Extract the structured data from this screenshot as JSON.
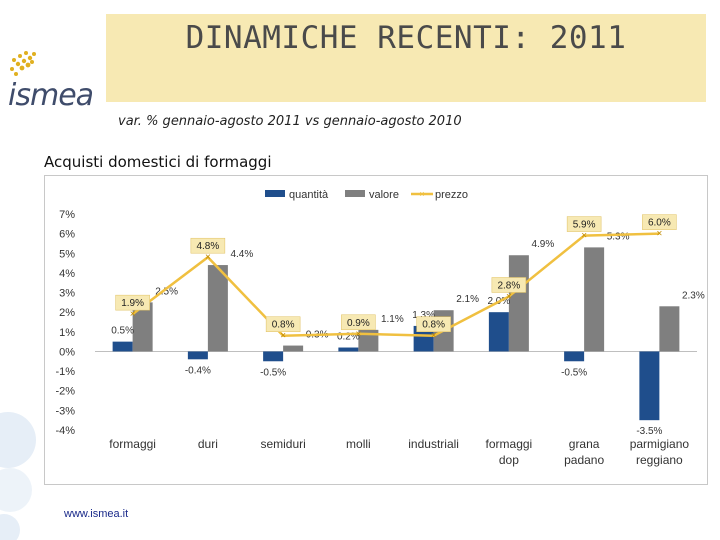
{
  "header": {
    "title": "DINAMICHE RECENTI: 2011",
    "subtitle": "var. % gennaio-agosto 2011 vs  gennaio-agosto 2010",
    "logo_text": "ismea",
    "website": "www.ismea.it"
  },
  "colors": {
    "quantita": "#1f4e8c",
    "valore": "#7f7f7f",
    "prezzo": "#f0c040",
    "title_bg": "#f7e9b3"
  },
  "chart_data": {
    "type": "bar",
    "title": "Acquisti domestici di formaggi",
    "categories": [
      "formaggi",
      "duri",
      "semiduri",
      "molli",
      "industriali",
      "formaggi\ndop",
      "grana\npadano",
      "parmigiano\nreggiano"
    ],
    "series": [
      {
        "name": "quantità",
        "kind": "bar",
        "values": [
          0.5,
          -0.4,
          -0.5,
          0.2,
          1.3,
          2.0,
          -0.5,
          -3.5
        ],
        "labels": [
          "0.5%",
          "-0.4%",
          "-0.5%",
          "0.2%",
          "1.3%",
          "2.0%",
          "-0.5%",
          "-3.5%"
        ]
      },
      {
        "name": "valore",
        "kind": "bar",
        "values": [
          2.5,
          4.4,
          0.3,
          1.1,
          2.1,
          4.9,
          5.3,
          2.3
        ],
        "labels": [
          "2.5%",
          "4.4%",
          "0.3%",
          "1.1%",
          "2.1%",
          "4.9%",
          "5.3%",
          "2.3%"
        ]
      },
      {
        "name": "prezzo",
        "kind": "line",
        "values": [
          1.9,
          4.8,
          0.8,
          0.9,
          0.8,
          2.8,
          5.9,
          6.0
        ],
        "labels": [
          "1.9%",
          "4.8%",
          "0.8%",
          "0.9%",
          "0.8%",
          "2.8%",
          "5.9%",
          "6.0%"
        ]
      }
    ],
    "legend": [
      "quantità",
      "valore",
      "prezzo"
    ],
    "legend_position": "top",
    "ylim": [
      -4,
      7
    ],
    "yticks": [
      7,
      6,
      5,
      4,
      3,
      2,
      1,
      0,
      -1,
      -2,
      -3,
      -4
    ],
    "ytick_labels": [
      "7%",
      "6%",
      "5%",
      "4%",
      "3%",
      "2%",
      "1%",
      "0%",
      "-1%",
      "-2%",
      "-3%",
      "-4%"
    ],
    "grid": false
  }
}
